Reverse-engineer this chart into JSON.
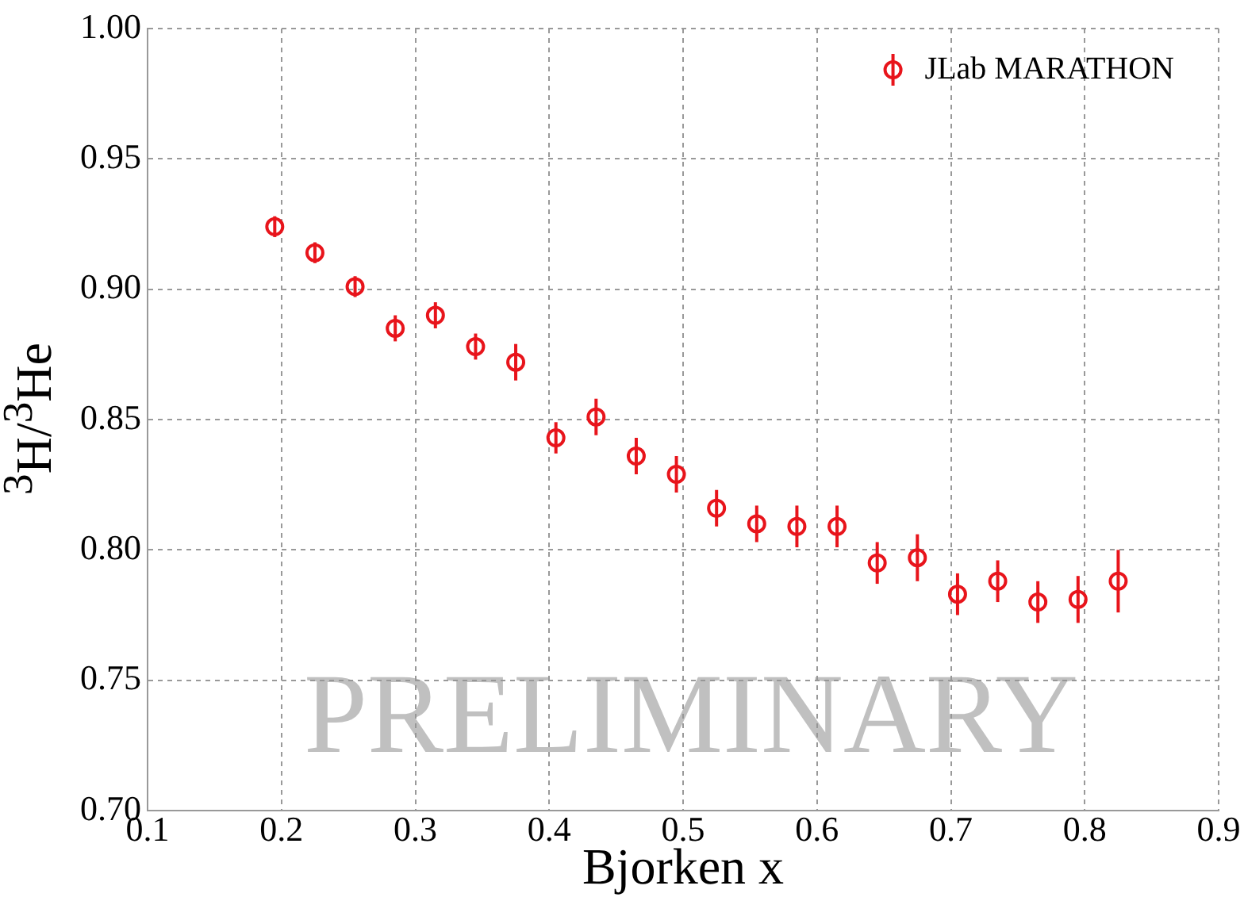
{
  "chart_data": {
    "type": "scatter",
    "xlabel": "Bjorken x",
    "ylabel": "$^{3}$H/$^{3}$He",
    "annotations": [
      "PRELIMINARY"
    ],
    "series": [
      {
        "name": "JLab MARATHON",
        "color": "#e8141b",
        "x": [
          0.195,
          0.225,
          0.255,
          0.285,
          0.315,
          0.345,
          0.375,
          0.405,
          0.435,
          0.465,
          0.495,
          0.525,
          0.555,
          0.585,
          0.615,
          0.645,
          0.675,
          0.705,
          0.735,
          0.765,
          0.795,
          0.825
        ],
        "values": [
          0.924,
          0.914,
          0.901,
          0.885,
          0.89,
          0.878,
          0.872,
          0.843,
          0.851,
          0.836,
          0.829,
          0.816,
          0.81,
          0.809,
          0.809,
          0.795,
          0.797,
          0.783,
          0.788,
          0.78,
          0.781,
          0.788
        ],
        "errors": [
          0.004,
          0.004,
          0.004,
          0.005,
          0.005,
          0.005,
          0.007,
          0.006,
          0.007,
          0.007,
          0.007,
          0.007,
          0.007,
          0.008,
          0.008,
          0.008,
          0.009,
          0.008,
          0.008,
          0.008,
          0.009,
          0.012
        ]
      }
    ],
    "xlim": [
      0.1,
      0.9
    ],
    "xticks": [
      0.1,
      0.2,
      0.3,
      0.4,
      0.5,
      0.6,
      0.7,
      0.8,
      0.9
    ],
    "ylim": [
      0.7,
      1.0
    ],
    "yticks": [
      {
        "value": 0.7,
        "label": "0.70"
      },
      0.75,
      {
        "value": 0.8,
        "label": "0.80"
      },
      0.85,
      {
        "value": 0.9,
        "label": "0.90"
      },
      0.95,
      {
        "value": 1.0,
        "label": "1.00"
      }
    ],
    "grid": true,
    "legend": "top right",
    "marker": "circle"
  }
}
